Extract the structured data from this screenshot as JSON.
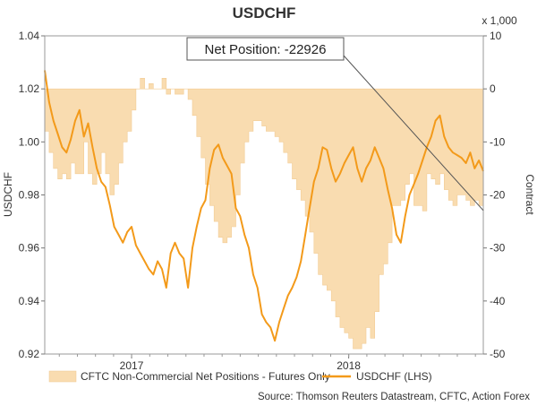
{
  "chart_data": {
    "type": "area",
    "title": "USDCHF",
    "ylabel_left": "USDCHF",
    "ylabel_right": "Contract",
    "right_axis_multiplier": "x 1,000",
    "ylim_left": [
      0.92,
      1.04
    ],
    "ylim_right": [
      -50,
      10
    ],
    "yticks_left": [
      "0.92",
      "0.94",
      "0.96",
      "0.98",
      "1.00",
      "1.02",
      "1.04"
    ],
    "yticks_right": [
      "-50",
      "-40",
      "-30",
      "-20",
      "-10",
      "0",
      "10"
    ],
    "x_range": [
      2016.6,
      2018.62
    ],
    "xticks": [
      {
        "label": "2017",
        "x": 2017.0
      },
      {
        "label": "2018",
        "x": 2018.0
      }
    ],
    "grid": false,
    "legend_position": "bottom",
    "source": "Source: Thomson Reuters Datastream, CFTC, Action Forex",
    "annotation": {
      "label": "Net Position: -22926",
      "value": -22.926
    },
    "series": [
      {
        "name": "CFTC Non-Commercial Net Positions - Futures Only",
        "axis": "right",
        "kind": "area",
        "color": "#f9dcb0",
        "x": [
          2016.6,
          2016.62,
          2016.64,
          2016.66,
          2016.68,
          2016.7,
          2016.72,
          2016.74,
          2016.76,
          2016.78,
          2016.8,
          2016.82,
          2016.84,
          2016.86,
          2016.88,
          2016.9,
          2016.92,
          2016.94,
          2016.96,
          2016.98,
          2017.0,
          2017.02,
          2017.04,
          2017.06,
          2017.08,
          2017.1,
          2017.12,
          2017.14,
          2017.16,
          2017.18,
          2017.2,
          2017.22,
          2017.24,
          2017.26,
          2017.28,
          2017.3,
          2017.32,
          2017.34,
          2017.36,
          2017.38,
          2017.4,
          2017.42,
          2017.44,
          2017.46,
          2017.48,
          2017.5,
          2017.52,
          2017.54,
          2017.56,
          2017.58,
          2017.6,
          2017.62,
          2017.64,
          2017.66,
          2017.68,
          2017.7,
          2017.72,
          2017.74,
          2017.76,
          2017.78,
          2017.8,
          2017.82,
          2017.84,
          2017.86,
          2017.88,
          2017.9,
          2017.92,
          2017.94,
          2017.96,
          2017.98,
          2018.0,
          2018.02,
          2018.04,
          2018.06,
          2018.08,
          2018.1,
          2018.12,
          2018.14,
          2018.16,
          2018.18,
          2018.2,
          2018.22,
          2018.24,
          2018.26,
          2018.28,
          2018.3,
          2018.32,
          2018.34,
          2018.36,
          2018.38,
          2018.4,
          2018.42,
          2018.44,
          2018.46,
          2018.48,
          2018.5,
          2018.52,
          2018.54,
          2018.56,
          2018.58,
          2018.6,
          2018.62
        ],
        "values": [
          -8,
          -12,
          -15,
          -17,
          -16,
          -17,
          -14,
          -16,
          -16,
          -10,
          -16,
          -18,
          -16,
          -12,
          -16,
          -20,
          -18,
          -14,
          -10,
          -8,
          -4,
          0,
          2,
          0,
          1,
          0,
          0,
          2,
          -1,
          0,
          -1,
          -1,
          0,
          -2,
          -5,
          -9,
          -13,
          -18,
          -22,
          -25,
          -28,
          -29,
          -28,
          -26,
          -20,
          -14,
          -10,
          -8,
          -6,
          -6,
          -7,
          -8,
          -8,
          -9,
          -10,
          -12,
          -14,
          -17,
          -19,
          -21,
          -24,
          -27,
          -31,
          -35,
          -37,
          -38,
          -40,
          -43,
          -45,
          -46,
          -47,
          -49,
          -49,
          -48,
          -45,
          -47,
          -42,
          -35,
          -33,
          -29,
          -22,
          -22,
          -21,
          -18,
          -16,
          -22,
          -22,
          -23,
          -16,
          -17,
          -18,
          -16,
          -19,
          -21,
          -22,
          -20,
          -20,
          -21,
          -22,
          -21,
          -22,
          -23
        ]
      },
      {
        "name": "USDCHF (LHS)",
        "axis": "left",
        "kind": "line",
        "color": "#f39a1a",
        "x": [
          2016.6,
          2016.62,
          2016.64,
          2016.66,
          2016.68,
          2016.7,
          2016.72,
          2016.74,
          2016.76,
          2016.78,
          2016.8,
          2016.82,
          2016.84,
          2016.86,
          2016.88,
          2016.9,
          2016.92,
          2016.94,
          2016.96,
          2016.98,
          2017.0,
          2017.02,
          2017.04,
          2017.06,
          2017.08,
          2017.1,
          2017.12,
          2017.14,
          2017.16,
          2017.18,
          2017.2,
          2017.22,
          2017.24,
          2017.26,
          2017.28,
          2017.3,
          2017.32,
          2017.34,
          2017.36,
          2017.38,
          2017.4,
          2017.42,
          2017.44,
          2017.46,
          2017.48,
          2017.5,
          2017.52,
          2017.54,
          2017.56,
          2017.58,
          2017.6,
          2017.62,
          2017.64,
          2017.66,
          2017.68,
          2017.7,
          2017.72,
          2017.74,
          2017.76,
          2017.78,
          2017.8,
          2017.82,
          2017.84,
          2017.86,
          2017.88,
          2017.9,
          2017.92,
          2017.94,
          2017.96,
          2017.98,
          2018.0,
          2018.02,
          2018.04,
          2018.06,
          2018.08,
          2018.1,
          2018.12,
          2018.14,
          2018.16,
          2018.18,
          2018.2,
          2018.22,
          2018.24,
          2018.26,
          2018.28,
          2018.3,
          2018.32,
          2018.34,
          2018.36,
          2018.38,
          2018.4,
          2018.42,
          2018.44,
          2018.46,
          2018.48,
          2018.5,
          2018.52,
          2018.54,
          2018.56,
          2018.58,
          2018.6,
          2018.62
        ],
        "values": [
          1.027,
          1.015,
          1.008,
          1.003,
          0.998,
          0.996,
          1.001,
          1.008,
          1.012,
          1.002,
          1.007,
          0.998,
          0.99,
          0.985,
          0.983,
          0.976,
          0.968,
          0.965,
          0.962,
          0.966,
          0.968,
          0.961,
          0.958,
          0.955,
          0.952,
          0.95,
          0.955,
          0.952,
          0.945,
          0.958,
          0.962,
          0.958,
          0.956,
          0.945,
          0.96,
          0.968,
          0.975,
          0.978,
          0.99,
          0.997,
          0.999,
          0.994,
          0.991,
          0.988,
          0.975,
          0.972,
          0.965,
          0.96,
          0.95,
          0.945,
          0.935,
          0.932,
          0.93,
          0.925,
          0.932,
          0.937,
          0.942,
          0.945,
          0.949,
          0.955,
          0.965,
          0.975,
          0.985,
          0.99,
          0.998,
          0.997,
          0.99,
          0.985,
          0.988,
          0.992,
          0.995,
          0.998,
          0.99,
          0.985,
          0.99,
          0.993,
          0.998,
          0.994,
          0.99,
          0.982,
          0.975,
          0.965,
          0.962,
          0.972,
          0.98,
          0.984,
          0.988,
          0.993,
          0.998,
          1.002,
          1.008,
          1.01,
          1.002,
          0.998,
          0.996,
          0.995,
          0.994,
          0.992,
          0.996,
          0.99,
          0.993,
          0.989
        ]
      }
    ]
  }
}
